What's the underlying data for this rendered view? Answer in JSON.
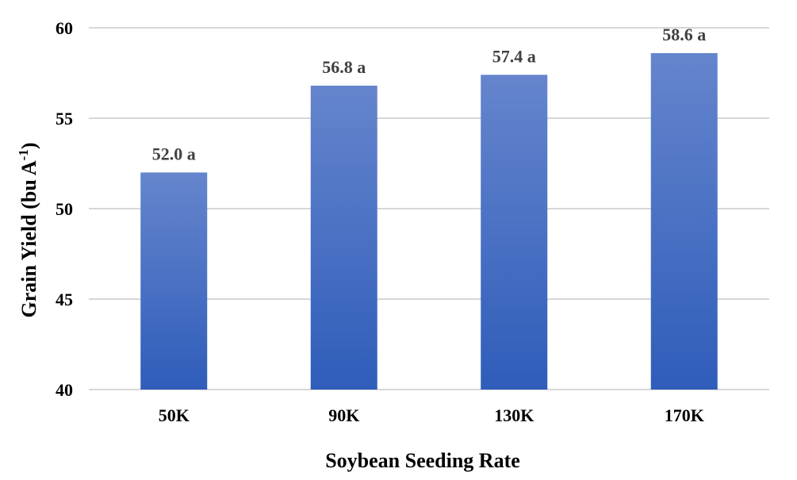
{
  "chart_data": {
    "type": "bar",
    "categories": [
      "50K",
      "90K",
      "130K",
      "170K"
    ],
    "values": [
      52.0,
      56.8,
      57.4,
      58.6
    ],
    "data_labels": [
      "52.0 a",
      "56.8 a",
      "57.4 a",
      "58.6 a"
    ],
    "xlabel": "Soybean Seeding Rate",
    "ylabel": {
      "main": "Grain Yield (bu A",
      "superscript": "-1",
      "close": ")"
    },
    "ylim": [
      40,
      60
    ],
    "yticks": [
      40,
      45,
      50,
      55,
      60
    ],
    "grid": true,
    "legend": "none",
    "bar_color_top": "#6585cd",
    "bar_color_bottom": "#2f5dba"
  }
}
